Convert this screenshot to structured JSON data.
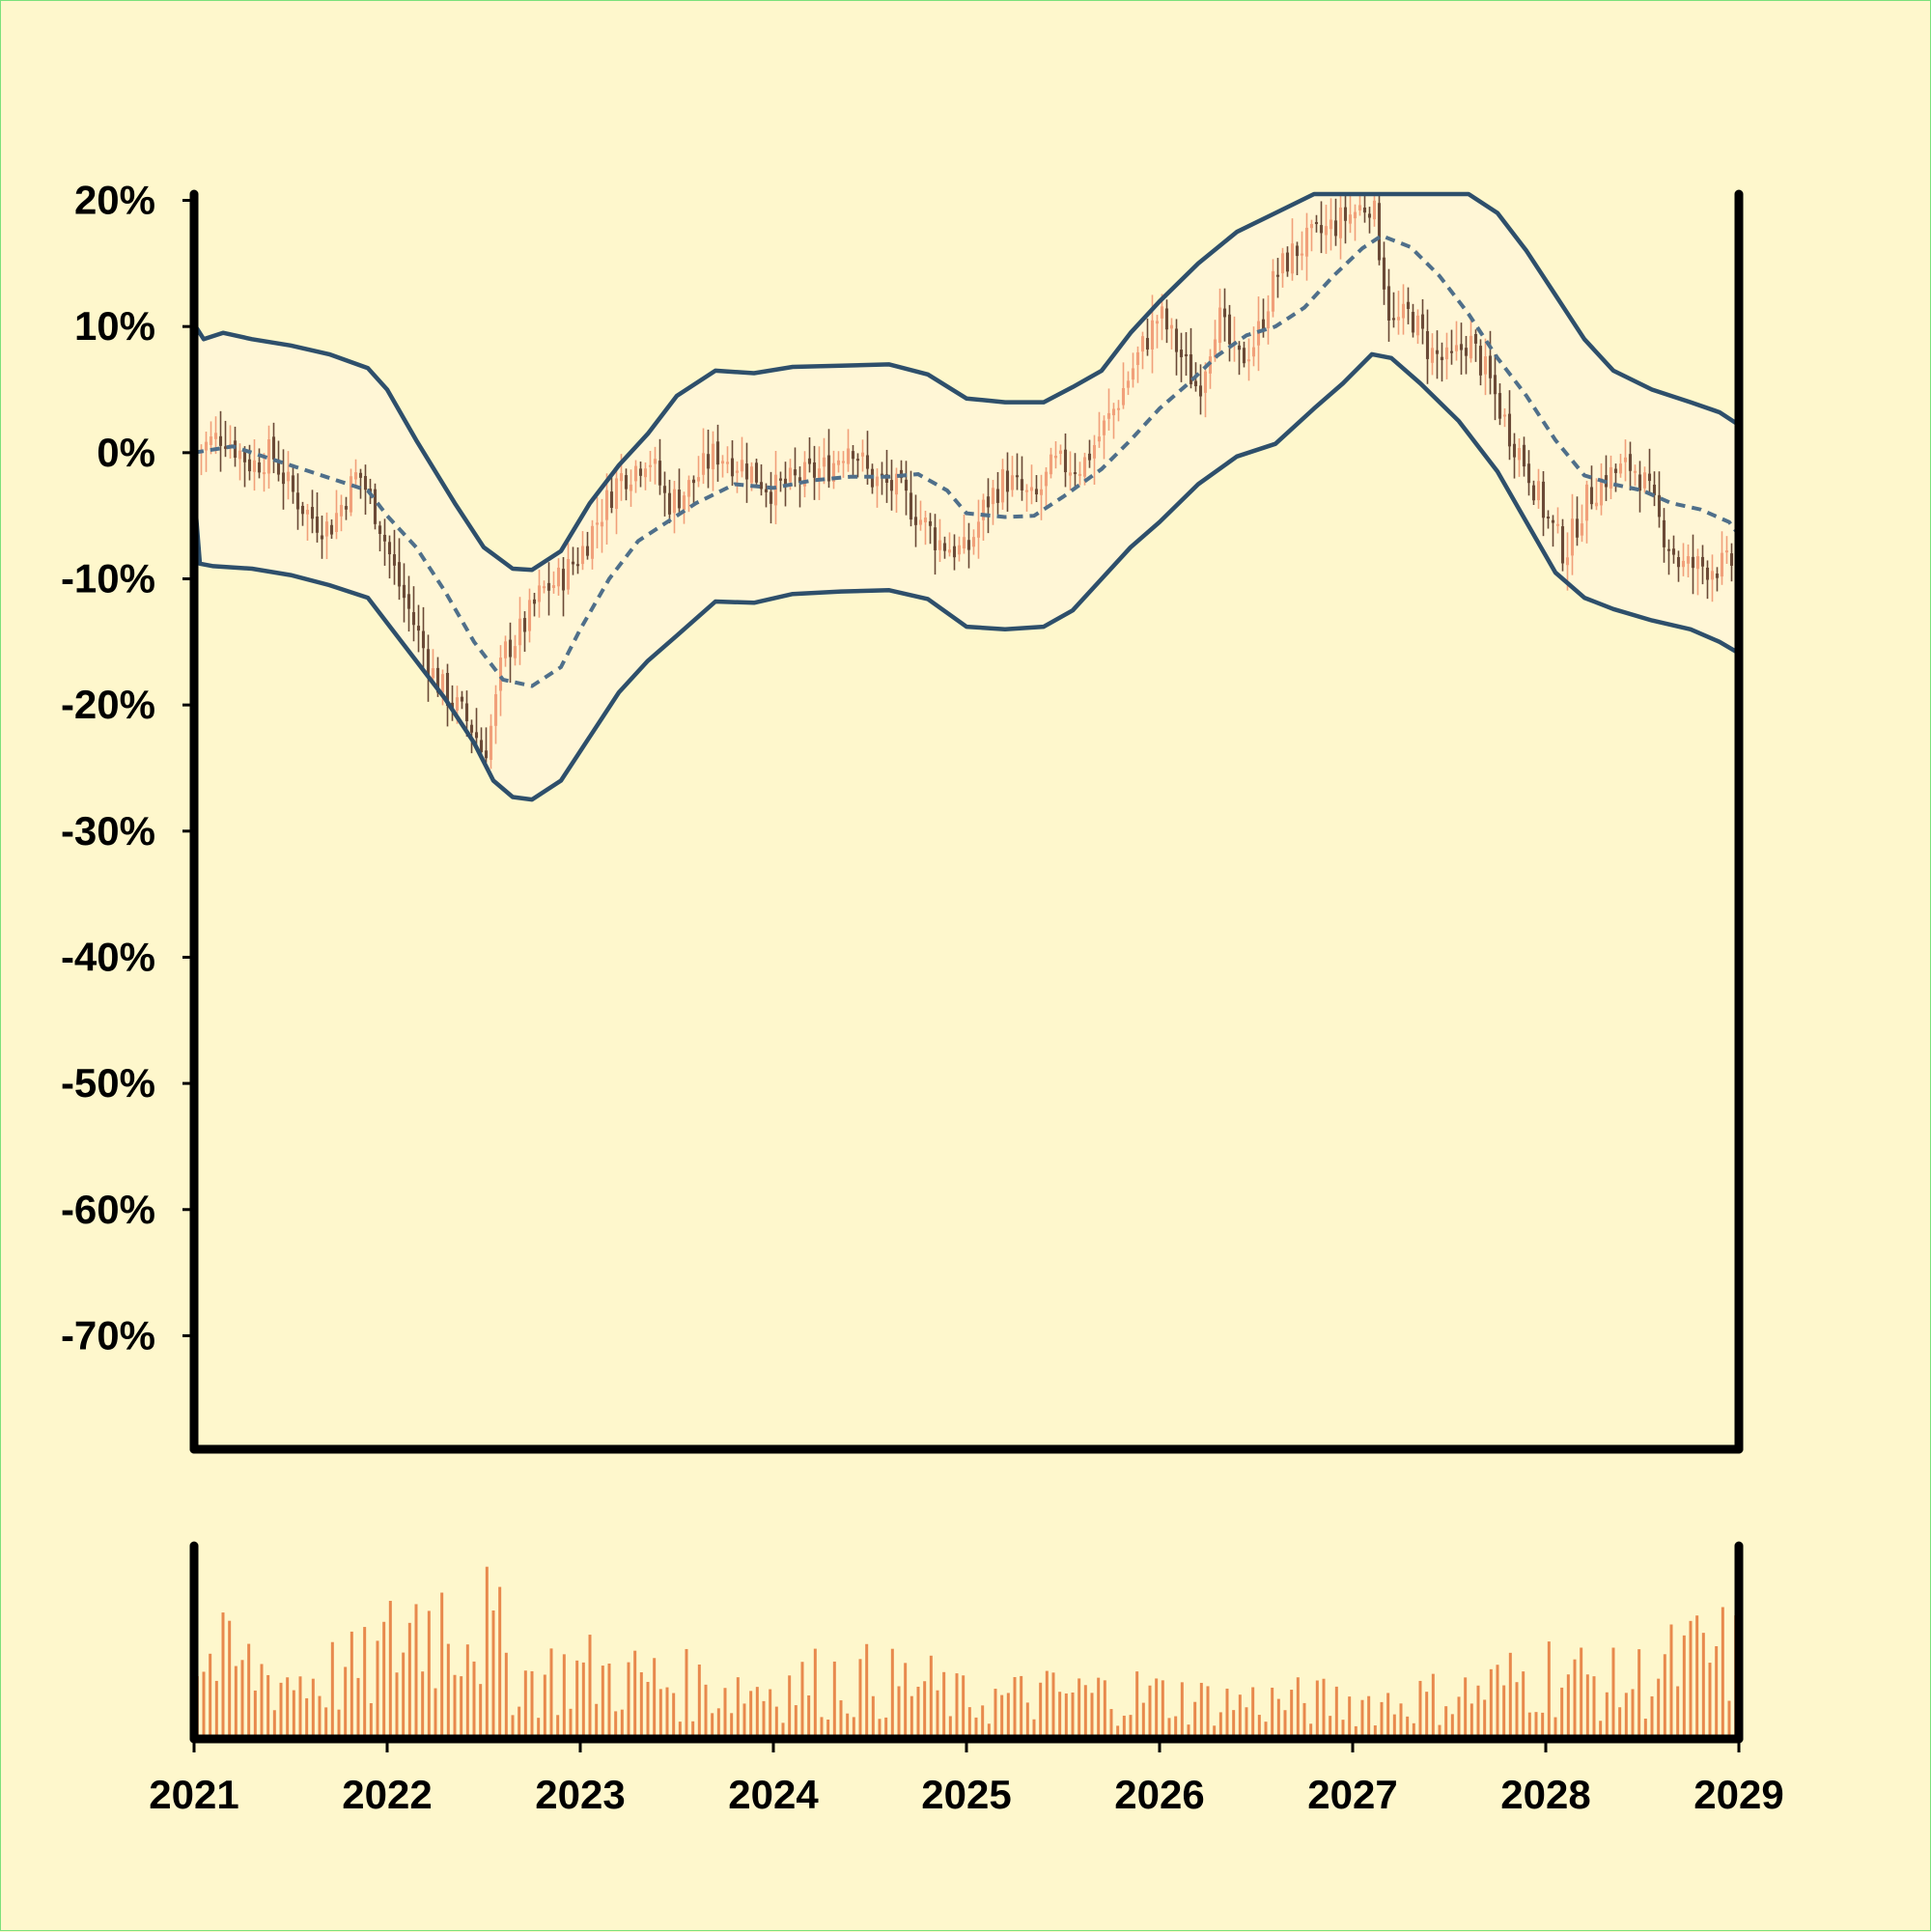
{
  "chart_data": {
    "type": "candlestick",
    "title": "",
    "xlabel": "",
    "ylabel": "",
    "x_range": [
      2021.0,
      2029.0
    ],
    "ylim": [
      -79,
      20.5
    ],
    "x_ticks": [
      "2021",
      "2022",
      "2023",
      "2024",
      "2025",
      "2026",
      "2027",
      "2028",
      "2029"
    ],
    "y_ticks": [
      "20%",
      "10%",
      "0%",
      "-10%",
      "-20%",
      "-30%",
      "-40%",
      "-50%",
      "-60%",
      "-70%"
    ],
    "y_tick_values": [
      20,
      10,
      0,
      -10,
      -20,
      -30,
      -40,
      -50,
      -60,
      -70
    ],
    "grid": false,
    "legend": "none",
    "colors": {
      "background": "#fef7cc",
      "band_fill": "#fff6d6",
      "band_line": "#2e4f6b",
      "middle_line": "#4f6f8a",
      "up_candle": "#f1a07a",
      "down_candle": "#6b4a37",
      "volume_bar": "#e8894d",
      "axis": "#000000"
    },
    "close_keypoints": [
      [
        2021.0,
        0
      ],
      [
        2021.15,
        1.5
      ],
      [
        2021.3,
        -1
      ],
      [
        2021.4,
        0
      ],
      [
        2021.5,
        -3
      ],
      [
        2021.6,
        -5
      ],
      [
        2021.7,
        -6
      ],
      [
        2021.85,
        -1.5
      ],
      [
        2021.95,
        -5
      ],
      [
        2022.05,
        -10
      ],
      [
        2022.15,
        -14
      ],
      [
        2022.25,
        -18
      ],
      [
        2022.35,
        -20
      ],
      [
        2022.45,
        -22
      ],
      [
        2022.5,
        -24
      ],
      [
        2022.55,
        -21
      ],
      [
        2022.6,
        -16
      ],
      [
        2022.7,
        -14
      ],
      [
        2022.8,
        -11
      ],
      [
        2022.9,
        -10
      ],
      [
        2023.0,
        -8
      ],
      [
        2023.1,
        -5
      ],
      [
        2023.2,
        -2
      ],
      [
        2023.3,
        -1
      ],
      [
        2023.35,
        0
      ],
      [
        2023.45,
        -4
      ],
      [
        2023.55,
        -3
      ],
      [
        2023.7,
        0
      ],
      [
        2023.85,
        -1
      ],
      [
        2024.0,
        -3
      ],
      [
        2024.15,
        -2
      ],
      [
        2024.3,
        -1
      ],
      [
        2024.4,
        1
      ],
      [
        2024.5,
        -2
      ],
      [
        2024.65,
        -3
      ],
      [
        2024.75,
        -5
      ],
      [
        2024.85,
        -7
      ],
      [
        2025.0,
        -8
      ],
      [
        2025.1,
        -4
      ],
      [
        2025.2,
        -2
      ],
      [
        2025.35,
        -4
      ],
      [
        2025.45,
        -1
      ],
      [
        2025.6,
        -1
      ],
      [
        2025.75,
        3
      ],
      [
        2025.9,
        8
      ],
      [
        2026.0,
        11
      ],
      [
        2026.1,
        8
      ],
      [
        2026.2,
        5
      ],
      [
        2026.3,
        11
      ],
      [
        2026.4,
        7
      ],
      [
        2026.5,
        9
      ],
      [
        2026.6,
        14
      ],
      [
        2026.7,
        16
      ],
      [
        2026.8,
        17
      ],
      [
        2026.9,
        18
      ],
      [
        2027.0,
        19
      ],
      [
        2027.1,
        20
      ],
      [
        2027.2,
        10
      ],
      [
        2027.3,
        11
      ],
      [
        2027.4,
        8
      ],
      [
        2027.5,
        7
      ],
      [
        2027.6,
        9
      ],
      [
        2027.7,
        6
      ],
      [
        2027.8,
        2
      ],
      [
        2027.9,
        -1
      ],
      [
        2028.0,
        -5
      ],
      [
        2028.1,
        -8
      ],
      [
        2028.2,
        -4
      ],
      [
        2028.3,
        -2
      ],
      [
        2028.45,
        -1
      ],
      [
        2028.5,
        -2
      ],
      [
        2028.6,
        -6
      ],
      [
        2028.7,
        -9
      ],
      [
        2028.8,
        -9
      ],
      [
        2028.95,
        -9
      ],
      [
        2029.0,
        -8
      ]
    ],
    "moving_average": [
      [
        2021.0,
        0
      ],
      [
        2021.2,
        0.5
      ],
      [
        2021.4,
        -0.5
      ],
      [
        2021.6,
        -1.5
      ],
      [
        2021.8,
        -2.5
      ],
      [
        2021.9,
        -3
      ],
      [
        2022.0,
        -5
      ],
      [
        2022.15,
        -7.5
      ],
      [
        2022.3,
        -11
      ],
      [
        2022.45,
        -15
      ],
      [
        2022.6,
        -18
      ],
      [
        2022.75,
        -18.5
      ],
      [
        2022.9,
        -17
      ],
      [
        2023.0,
        -14
      ],
      [
        2023.15,
        -10
      ],
      [
        2023.3,
        -7
      ],
      [
        2023.45,
        -5.5
      ],
      [
        2023.6,
        -4
      ],
      [
        2023.8,
        -2.5
      ],
      [
        2024.0,
        -2.8
      ],
      [
        2024.2,
        -2.2
      ],
      [
        2024.4,
        -1.9
      ],
      [
        2024.6,
        -1.9
      ],
      [
        2024.75,
        -1.7
      ],
      [
        2024.9,
        -3
      ],
      [
        2025.0,
        -4.8
      ],
      [
        2025.2,
        -5.1
      ],
      [
        2025.35,
        -5
      ],
      [
        2025.5,
        -3.5
      ],
      [
        2025.7,
        -1.3
      ],
      [
        2025.85,
        1
      ],
      [
        2026.0,
        3.5
      ],
      [
        2026.15,
        5.5
      ],
      [
        2026.3,
        7.7
      ],
      [
        2026.45,
        9.3
      ],
      [
        2026.6,
        10
      ],
      [
        2026.75,
        11.5
      ],
      [
        2026.9,
        14
      ],
      [
        2027.05,
        16.2
      ],
      [
        2027.15,
        17.2
      ],
      [
        2027.3,
        16.3
      ],
      [
        2027.45,
        14
      ],
      [
        2027.6,
        11
      ],
      [
        2027.75,
        7.5
      ],
      [
        2027.9,
        4.5
      ],
      [
        2028.05,
        1
      ],
      [
        2028.2,
        -1.8
      ],
      [
        2028.35,
        -2.5
      ],
      [
        2028.5,
        -3
      ],
      [
        2028.65,
        -4
      ],
      [
        2028.8,
        -4.5
      ],
      [
        2028.95,
        -5.5
      ],
      [
        2029.0,
        -6.5
      ]
    ],
    "upper_band": [
      [
        2021.0,
        10.2
      ],
      [
        2021.05,
        9
      ],
      [
        2021.15,
        9.5
      ],
      [
        2021.3,
        9
      ],
      [
        2021.5,
        8.5
      ],
      [
        2021.7,
        7.8
      ],
      [
        2021.9,
        6.7
      ],
      [
        2022.0,
        5
      ],
      [
        2022.15,
        1
      ],
      [
        2022.35,
        -4
      ],
      [
        2022.5,
        -7.5
      ],
      [
        2022.65,
        -9.2
      ],
      [
        2022.75,
        -9.3
      ],
      [
        2022.9,
        -7.8
      ],
      [
        2023.05,
        -4
      ],
      [
        2023.2,
        -1
      ],
      [
        2023.35,
        1.5
      ],
      [
        2023.5,
        4.5
      ],
      [
        2023.7,
        6.5
      ],
      [
        2023.9,
        6.3
      ],
      [
        2024.1,
        6.8
      ],
      [
        2024.35,
        6.9
      ],
      [
        2024.6,
        7
      ],
      [
        2024.8,
        6.2
      ],
      [
        2025.0,
        4.3
      ],
      [
        2025.2,
        4
      ],
      [
        2025.4,
        4
      ],
      [
        2025.55,
        5.2
      ],
      [
        2025.7,
        6.5
      ],
      [
        2025.85,
        9.5
      ],
      [
        2026.0,
        12
      ],
      [
        2026.2,
        15
      ],
      [
        2026.4,
        17.5
      ],
      [
        2026.6,
        19
      ],
      [
        2026.8,
        20.5
      ],
      [
        2027.0,
        20.5
      ],
      [
        2027.3,
        20.5
      ],
      [
        2027.6,
        20.5
      ],
      [
        2027.75,
        19
      ],
      [
        2027.9,
        16
      ],
      [
        2028.05,
        12.5
      ],
      [
        2028.2,
        9
      ],
      [
        2028.35,
        6.5
      ],
      [
        2028.55,
        5
      ],
      [
        2028.75,
        4
      ],
      [
        2028.9,
        3.2
      ],
      [
        2029.0,
        2.2
      ]
    ],
    "lower_band": [
      [
        2021.0,
        -3
      ],
      [
        2021.03,
        -8.8
      ],
      [
        2021.1,
        -9
      ],
      [
        2021.3,
        -9.2
      ],
      [
        2021.5,
        -9.7
      ],
      [
        2021.7,
        -10.5
      ],
      [
        2021.9,
        -11.5
      ],
      [
        2022.0,
        -13.5
      ],
      [
        2022.15,
        -16.5
      ],
      [
        2022.3,
        -19.5
      ],
      [
        2022.45,
        -23
      ],
      [
        2022.55,
        -26
      ],
      [
        2022.65,
        -27.3
      ],
      [
        2022.75,
        -27.5
      ],
      [
        2022.9,
        -26
      ],
      [
        2023.05,
        -22.5
      ],
      [
        2023.2,
        -19
      ],
      [
        2023.35,
        -16.5
      ],
      [
        2023.5,
        -14.5
      ],
      [
        2023.7,
        -11.8
      ],
      [
        2023.9,
        -11.9
      ],
      [
        2024.1,
        -11.2
      ],
      [
        2024.35,
        -11
      ],
      [
        2024.6,
        -10.9
      ],
      [
        2024.8,
        -11.6
      ],
      [
        2025.0,
        -13.8
      ],
      [
        2025.2,
        -14
      ],
      [
        2025.4,
        -13.8
      ],
      [
        2025.55,
        -12.5
      ],
      [
        2025.7,
        -10
      ],
      [
        2025.85,
        -7.5
      ],
      [
        2026.0,
        -5.5
      ],
      [
        2026.2,
        -2.5
      ],
      [
        2026.4,
        -0.3
      ],
      [
        2026.6,
        0.7
      ],
      [
        2026.8,
        3.5
      ],
      [
        2026.95,
        5.5
      ],
      [
        2027.1,
        7.8
      ],
      [
        2027.2,
        7.5
      ],
      [
        2027.35,
        5.5
      ],
      [
        2027.55,
        2.5
      ],
      [
        2027.75,
        -1.5
      ],
      [
        2027.9,
        -5.5
      ],
      [
        2028.05,
        -9.5
      ],
      [
        2028.2,
        -11.5
      ],
      [
        2028.35,
        -12.4
      ],
      [
        2028.55,
        -13.3
      ],
      [
        2028.75,
        -14
      ],
      [
        2028.9,
        -15
      ],
      [
        2029.0,
        -15.9
      ]
    ],
    "volume_profile": [
      [
        2021.0,
        0.55
      ],
      [
        2021.5,
        0.4
      ],
      [
        2021.9,
        0.45
      ],
      [
        2022.15,
        0.8
      ],
      [
        2022.45,
        0.85
      ],
      [
        2022.7,
        0.4
      ],
      [
        2023.0,
        0.45
      ],
      [
        2023.3,
        0.4
      ],
      [
        2023.6,
        0.35
      ],
      [
        2024.0,
        0.35
      ],
      [
        2024.35,
        0.4
      ],
      [
        2024.8,
        0.35
      ],
      [
        2025.0,
        0.25
      ],
      [
        2025.5,
        0.3
      ],
      [
        2025.9,
        0.3
      ],
      [
        2026.3,
        0.25
      ],
      [
        2026.8,
        0.25
      ],
      [
        2027.2,
        0.25
      ],
      [
        2027.6,
        0.3
      ],
      [
        2028.0,
        0.45
      ],
      [
        2028.4,
        0.35
      ],
      [
        2028.8,
        0.55
      ],
      [
        2029.0,
        0.55
      ]
    ]
  }
}
